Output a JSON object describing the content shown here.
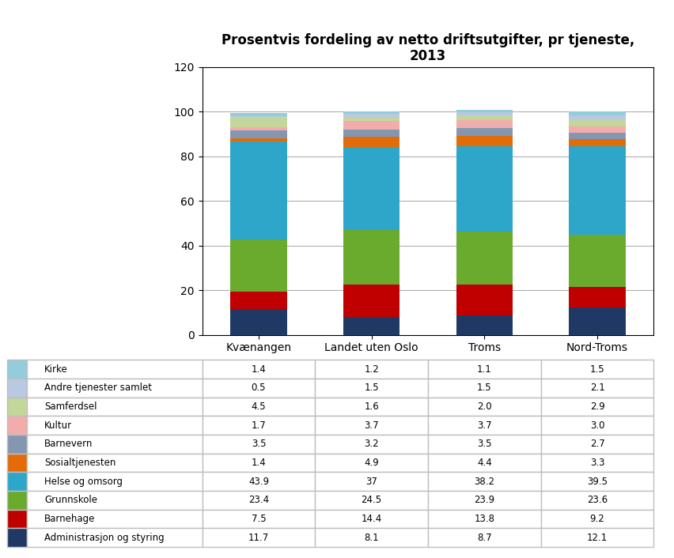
{
  "chart_data": {
    "type": "bar",
    "stacked": true,
    "grid": true,
    "data_labels": true,
    "title": "Prosentvis fordeling av netto driftsutgifter, pr tjeneste,\n2013",
    "categories": [
      "Kvænangen",
      "Landet uten Oslo",
      "Troms",
      "Nord-Troms"
    ],
    "series": [
      {
        "name": "Administrasjon og styring",
        "color": "#1F3864",
        "values": [
          11.7,
          8.1,
          8.7,
          12.1
        ]
      },
      {
        "name": "Barnehage",
        "color": "#C00000",
        "values": [
          7.5,
          14.4,
          13.8,
          9.2
        ]
      },
      {
        "name": "Grunnskole",
        "color": "#6AAB2E",
        "values": [
          23.4,
          24.5,
          23.9,
          23.6
        ]
      },
      {
        "name": "Helse og omsorg",
        "color": "#2EA6C9",
        "values": [
          43.9,
          37,
          38.2,
          39.5
        ]
      },
      {
        "name": "Sosialtjenesten",
        "color": "#E36C09",
        "values": [
          1.4,
          4.9,
          4.4,
          3.3
        ]
      },
      {
        "name": "Barnevern",
        "color": "#8497B0",
        "values": [
          3.5,
          3.2,
          3.5,
          2.7
        ]
      },
      {
        "name": "Kultur",
        "color": "#F2ACAC",
        "values": [
          1.7,
          3.7,
          3.7,
          3.0
        ]
      },
      {
        "name": "Samferdsel",
        "color": "#C4D79B",
        "values": [
          4.5,
          1.6,
          2.0,
          2.9
        ]
      },
      {
        "name": "Andre tjenester samlet",
        "color": "#B8C9E1",
        "values": [
          0.5,
          1.5,
          1.5,
          2.1
        ]
      },
      {
        "name": "Kirke",
        "color": "#92CDDC",
        "values": [
          1.4,
          1.2,
          1.1,
          1.5
        ]
      }
    ],
    "ylim": [
      0,
      120
    ],
    "yticks": [
      0,
      20,
      40,
      60,
      80,
      100,
      120
    ]
  }
}
